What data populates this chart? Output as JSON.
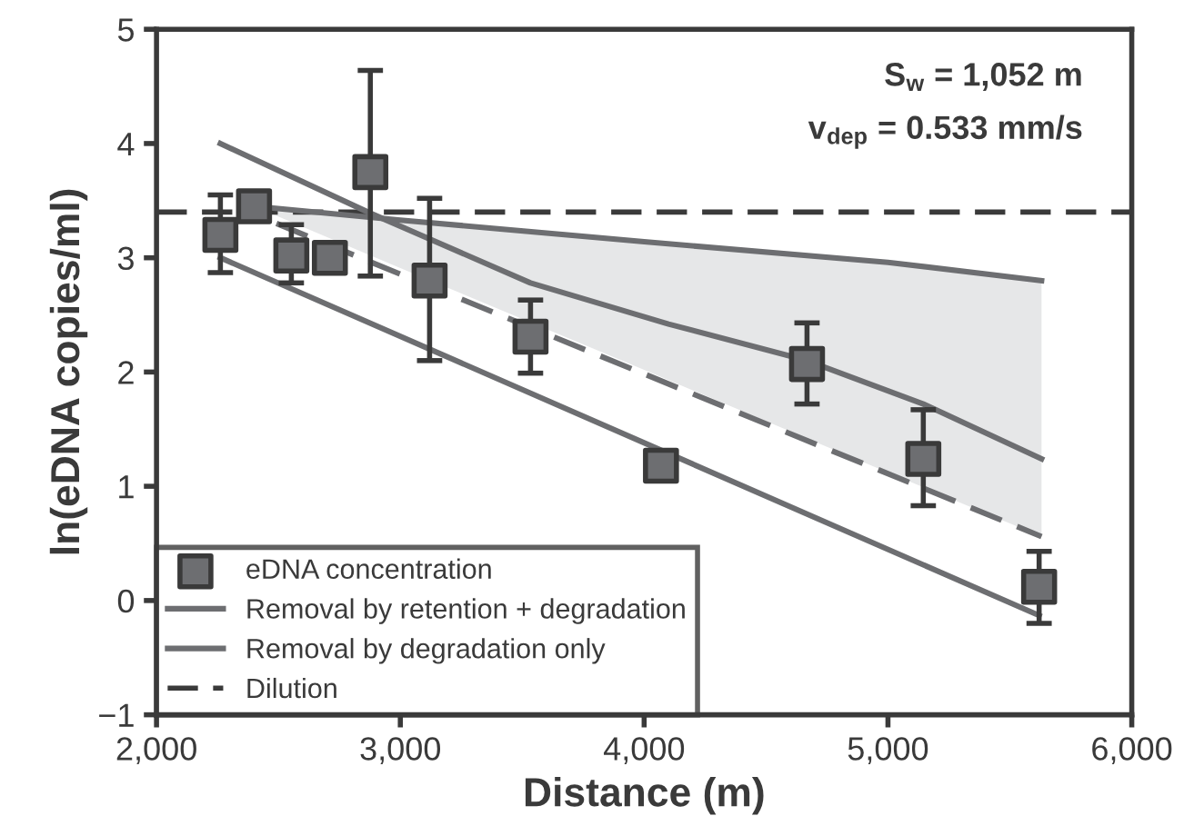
{
  "chart_data": {
    "type": "scatter",
    "xlabel": "Distance (m)",
    "ylabel": "ln(eDNA copies/ml)",
    "xlim": [
      2000,
      6000
    ],
    "xticks": [
      {
        "value": 2000,
        "label": "2,000"
      },
      {
        "value": 3000,
        "label": "3,000"
      },
      {
        "value": 4000,
        "label": "4,000"
      },
      {
        "value": 5000,
        "label": "5,000"
      },
      {
        "value": 6000,
        "label": "6,000"
      }
    ],
    "ylim": [
      -1,
      5
    ],
    "yticks": [
      {
        "value": -1,
        "label": "−1"
      },
      0,
      1,
      2,
      3,
      4,
      5
    ],
    "grid": false,
    "legend": "bottom left",
    "annotations": [
      "S$_{w}$ = 1,052 m",
      "v$_{dep}$ = 0.533 mm/s"
    ],
    "ref_lines": [
      {
        "axis": "y",
        "value": 3.4,
        "label": "Dilution",
        "color": "#3a3a3a",
        "line_style": "dashed"
      }
    ],
    "series": [
      {
        "name": "eDNA concentration",
        "marker": "square",
        "color": "#6d6e71",
        "x": [
          2262,
          2400,
          2553,
          2711,
          2877,
          3120,
          3534,
          4069,
          4668,
          5145,
          5620
        ],
        "values": [
          3.2,
          3.45,
          3.02,
          3.0,
          3.75,
          2.8,
          2.31,
          1.18,
          2.07,
          1.24,
          0.12
        ],
        "errors": [
          [
            2.87,
            3.55
          ],
          null,
          [
            2.78,
            3.29
          ],
          null,
          [
            2.84,
            4.64
          ],
          [
            2.1,
            3.52
          ],
          [
            1.99,
            2.63
          ],
          null,
          [
            1.72,
            2.43
          ],
          [
            0.83,
            1.67
          ],
          [
            -0.2,
            0.43
          ]
        ]
      },
      {
        "name": "Removal by retention + degradation",
        "type": "line",
        "color": "#6d6e71",
        "line_style": "solid",
        "x": [
          2262,
          2877,
          3534,
          4100,
          4668,
          5145,
          5630
        ],
        "values": [
          4.0,
          3.39,
          2.78,
          2.42,
          2.1,
          1.72,
          1.24
        ]
      },
      {
        "name": "Removal by degradation only",
        "type": "line",
        "color": "#6d6e71",
        "line_style": "solid",
        "x": [
          2400,
          3000,
          4000,
          5000,
          5630
        ],
        "values": [
          3.45,
          3.33,
          3.14,
          2.96,
          2.8
        ],
        "lower": [
          3.45,
          2.91,
          2.02,
          1.12,
          0.56
        ],
        "upper": [
          3.45,
          3.33,
          3.14,
          2.96,
          2.8
        ]
      },
      {
        "type": "line",
        "color": "#6d6e71",
        "line_style": "solid",
        "x": [
          2262,
          5620
        ],
        "values": [
          3.0,
          -0.13
        ]
      },
      {
        "type": "line",
        "color": "#6d6e71",
        "line_style": "dashed",
        "x": [
          2492,
          5630
        ],
        "values": [
          3.3,
          0.56
        ]
      }
    ]
  }
}
